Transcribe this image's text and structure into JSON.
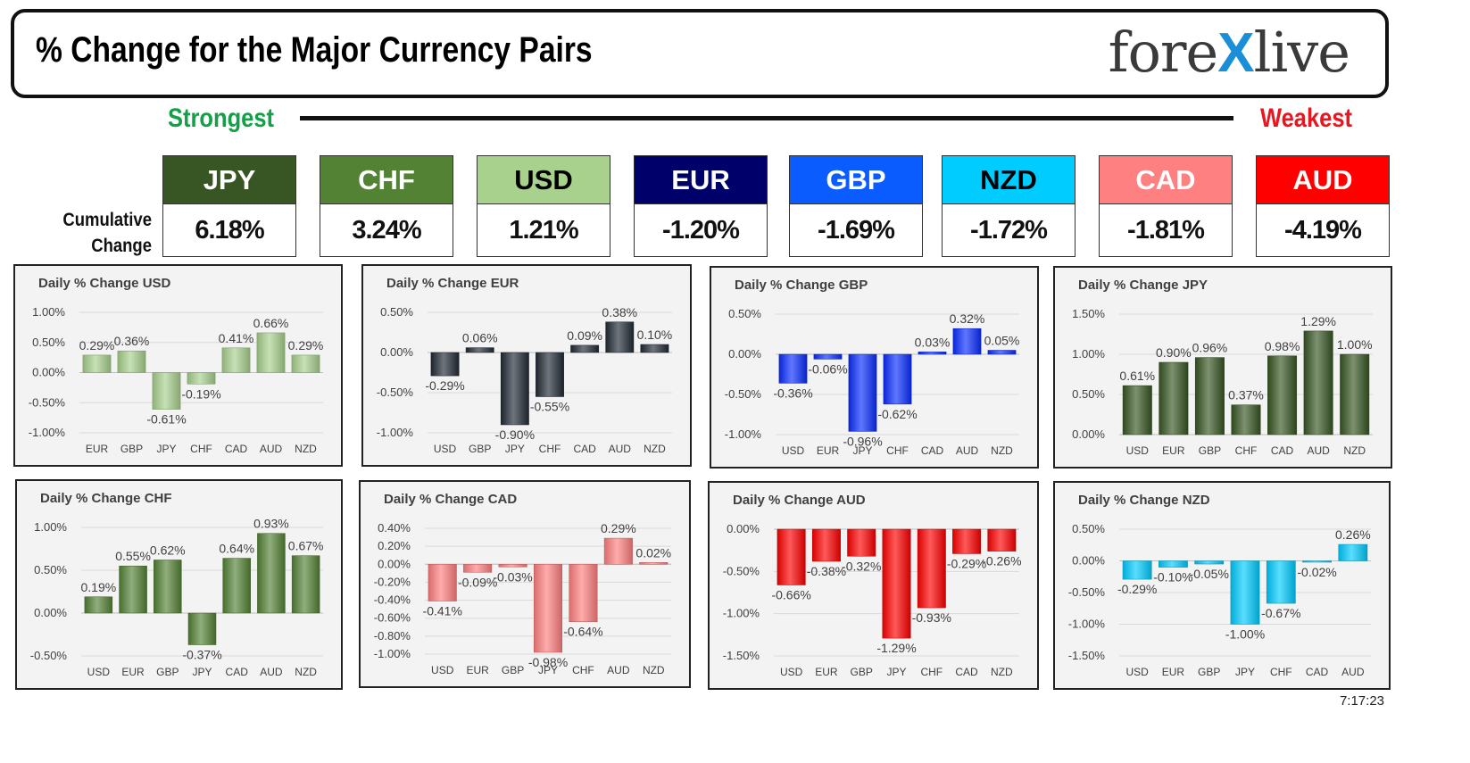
{
  "header": {
    "title": "% Change for the Major Currency Pairs",
    "logo_left": "fore",
    "logo_x": "X",
    "logo_right": "live"
  },
  "ranking": {
    "strongest_label": "Strongest",
    "weakest_label": "Weakest",
    "cumulative_label_line1": "Cumulative",
    "cumulative_label_line2": "Change",
    "currencies": [
      {
        "code": "JPY",
        "value": "6.18%",
        "color": "#375623",
        "text_color": "#ffffff"
      },
      {
        "code": "CHF",
        "value": "3.24%",
        "color": "#548235",
        "text_color": "#ffffff"
      },
      {
        "code": "USD",
        "value": "1.21%",
        "color": "#a9d18e",
        "text_color": "#000000"
      },
      {
        "code": "EUR",
        "value": "-1.20%",
        "color": "#00006b",
        "text_color": "#ffffff"
      },
      {
        "code": "GBP",
        "value": "-1.69%",
        "color": "#0a5cff",
        "text_color": "#ffffff"
      },
      {
        "code": "NZD",
        "value": "-1.72%",
        "color": "#00ccff",
        "text_color": "#000000"
      },
      {
        "code": "CAD",
        "value": "-1.81%",
        "color": "#ff8080",
        "text_color": "#ffffff"
      },
      {
        "code": "AUD",
        "value": "-4.19%",
        "color": "#ff0000",
        "text_color": "#ffffff"
      }
    ]
  },
  "timestamp": "7:17:23",
  "chart_data": [
    {
      "type": "bar",
      "title": "Daily % Change USD",
      "categories": [
        "EUR",
        "GBP",
        "JPY",
        "CHF",
        "CAD",
        "AUD",
        "NZD"
      ],
      "values": [
        0.29,
        0.36,
        -0.61,
        -0.19,
        0.41,
        0.66,
        0.29
      ],
      "labels": [
        "0.29%",
        "0.36%",
        "-0.61%",
        "-0.19%",
        "0.41%",
        "0.66%",
        "0.29%"
      ],
      "yticks": [
        "1.00%",
        "0.50%",
        "0.00%",
        "-0.50%",
        "-1.00%"
      ],
      "ylim": [
        -1.0,
        1.0
      ],
      "color": "#a9d18e"
    },
    {
      "type": "bar",
      "title": "Daily % Change EUR",
      "categories": [
        "USD",
        "GBP",
        "JPY",
        "CHF",
        "CAD",
        "AUD",
        "NZD"
      ],
      "values": [
        -0.29,
        0.06,
        -0.9,
        -0.55,
        0.09,
        0.38,
        0.1
      ],
      "labels": [
        "-0.29%",
        "0.06%",
        "-0.90%",
        "-0.55%",
        "0.09%",
        "0.38%",
        "0.10%"
      ],
      "yticks": [
        "0.50%",
        "0.00%",
        "-0.50%",
        "-1.00%"
      ],
      "ylim": [
        -1.0,
        0.5
      ],
      "color": "#222a35"
    },
    {
      "type": "bar",
      "title": "Daily % Change GBP",
      "categories": [
        "USD",
        "EUR",
        "JPY",
        "CHF",
        "CAD",
        "AUD",
        "NZD"
      ],
      "values": [
        -0.36,
        -0.06,
        -0.96,
        -0.62,
        0.03,
        0.32,
        0.05
      ],
      "labels": [
        "-0.36%",
        "-0.06%",
        "-0.96%",
        "-0.62%",
        "0.03%",
        "0.32%",
        "0.05%"
      ],
      "yticks": [
        "0.50%",
        "0.00%",
        "-0.50%",
        "-1.00%"
      ],
      "ylim": [
        -1.0,
        0.5
      ],
      "color": "#0a2dff"
    },
    {
      "type": "bar",
      "title": "Daily % Change JPY",
      "categories": [
        "USD",
        "EUR",
        "GBP",
        "CHF",
        "CAD",
        "AUD",
        "NZD"
      ],
      "values": [
        0.61,
        0.9,
        0.96,
        0.37,
        0.98,
        1.29,
        1.0
      ],
      "labels": [
        "0.61%",
        "0.90%",
        "0.96%",
        "0.37%",
        "0.98%",
        "1.29%",
        "1.00%"
      ],
      "yticks": [
        "1.50%",
        "1.00%",
        "0.50%",
        "0.00%"
      ],
      "ylim": [
        0.0,
        1.5
      ],
      "color": "#375623"
    },
    {
      "type": "bar",
      "title": "Daily % Change CHF",
      "categories": [
        "USD",
        "EUR",
        "GBP",
        "JPY",
        "CAD",
        "AUD",
        "NZD"
      ],
      "values": [
        0.19,
        0.55,
        0.62,
        -0.37,
        0.64,
        0.93,
        0.67
      ],
      "labels": [
        "0.19%",
        "0.55%",
        "0.62%",
        "-0.37%",
        "0.64%",
        "0.93%",
        "0.67%"
      ],
      "yticks": [
        "1.00%",
        "0.50%",
        "0.00%",
        "-0.50%"
      ],
      "ylim": [
        -0.5,
        1.0
      ],
      "color": "#548235"
    },
    {
      "type": "bar",
      "title": "Daily % Change CAD",
      "categories": [
        "USD",
        "EUR",
        "GBP",
        "JPY",
        "CHF",
        "AUD",
        "NZD"
      ],
      "values": [
        -0.41,
        -0.09,
        -0.03,
        -0.98,
        -0.64,
        0.29,
        0.02
      ],
      "labels": [
        "-0.41%",
        "-0.09%",
        "-0.03%",
        "-0.98%",
        "-0.64%",
        "0.29%",
        "0.02%"
      ],
      "yticks": [
        "0.40%",
        "0.20%",
        "0.00%",
        "-0.20%",
        "-0.40%",
        "-0.60%",
        "-0.80%",
        "-1.00%"
      ],
      "ylim": [
        -1.0,
        0.4
      ],
      "color": "#ff8080"
    },
    {
      "type": "bar",
      "title": "Daily % Change AUD",
      "categories": [
        "USD",
        "EUR",
        "GBP",
        "JPY",
        "CHF",
        "CAD",
        "NZD"
      ],
      "values": [
        -0.66,
        -0.38,
        -0.32,
        -1.29,
        -0.93,
        -0.29,
        -0.26
      ],
      "labels": [
        "-0.66%",
        "-0.38%",
        "-0.32%",
        "-1.29%",
        "-0.93%",
        "-0.29%",
        "-0.26%"
      ],
      "yticks": [
        "0.00%",
        "-0.50%",
        "-1.00%",
        "-1.50%"
      ],
      "ylim": [
        -1.5,
        0.0
      ],
      "color": "#ff0000"
    },
    {
      "type": "bar",
      "title": "Daily % Change NZD",
      "categories": [
        "USD",
        "EUR",
        "GBP",
        "JPY",
        "CHF",
        "CAD",
        "AUD"
      ],
      "values": [
        -0.29,
        -0.1,
        -0.05,
        -1.0,
        -0.67,
        -0.02,
        0.26
      ],
      "labels": [
        "-0.29%",
        "-0.10%",
        "-0.05%",
        "-1.00%",
        "-0.67%",
        "-0.02%",
        "0.26%"
      ],
      "yticks": [
        "0.50%",
        "0.00%",
        "-0.50%",
        "-1.00%",
        "-1.50%"
      ],
      "ylim": [
        -1.5,
        0.5
      ],
      "color": "#00ccff"
    }
  ]
}
